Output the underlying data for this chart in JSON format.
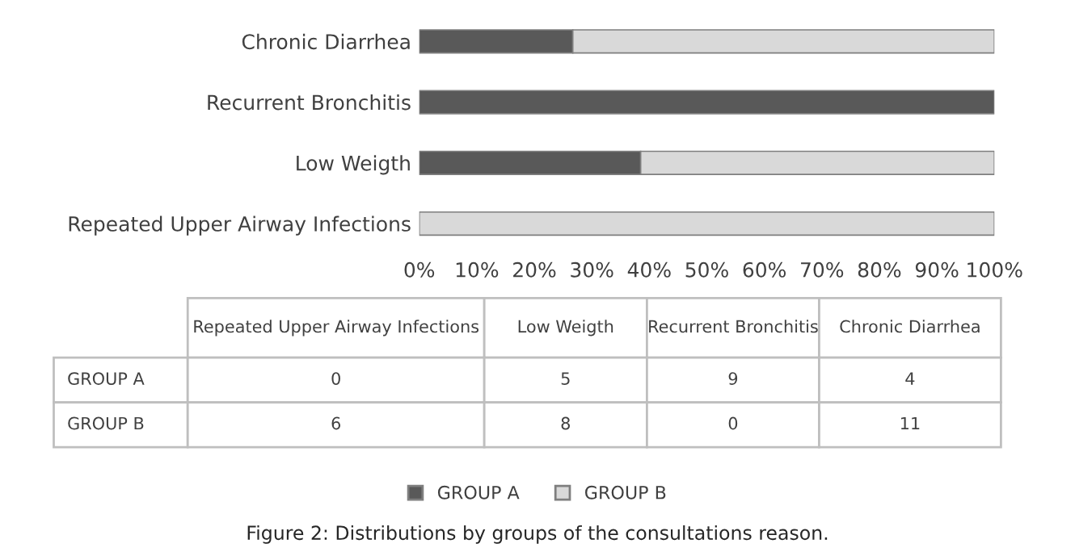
{
  "chart_data": {
    "type": "bar",
    "orientation": "horizontal",
    "stacked": true,
    "title": "Figure 2: Distributions by groups of the consultations reason.",
    "categories": [
      "Chronic Diarrhea",
      "Recurrent Bronchitis",
      "Low Weigth",
      "Repeated Upper Airway Infections"
    ],
    "series": [
      {
        "name": "GROUP A",
        "color": "#595959",
        "values": [
          26.7,
          100,
          38.5,
          0
        ]
      },
      {
        "name": "GROUP B",
        "color": "#d9d9d9",
        "values": [
          73.3,
          0,
          61.5,
          100
        ]
      }
    ],
    "annotations": [
      "0",
      "5",
      "9",
      "4",
      "6",
      "8",
      "0",
      "11"
    ],
    "xlim": [
      0,
      100
    ],
    "xticks": [
      {
        "value": 0,
        "label": "0%"
      },
      {
        "value": 10,
        "label": "10%"
      },
      {
        "value": 20,
        "label": "20%"
      },
      {
        "value": 30,
        "label": "30%"
      },
      {
        "value": 40,
        "label": "40%"
      },
      {
        "value": 50,
        "label": "50%"
      },
      {
        "value": 60,
        "label": "60%"
      },
      {
        "value": 70,
        "label": "70%"
      },
      {
        "value": 80,
        "label": "80%"
      },
      {
        "value": 90,
        "label": "90%"
      },
      {
        "value": 100,
        "label": "100%"
      }
    ],
    "legend": "bottom"
  }
}
